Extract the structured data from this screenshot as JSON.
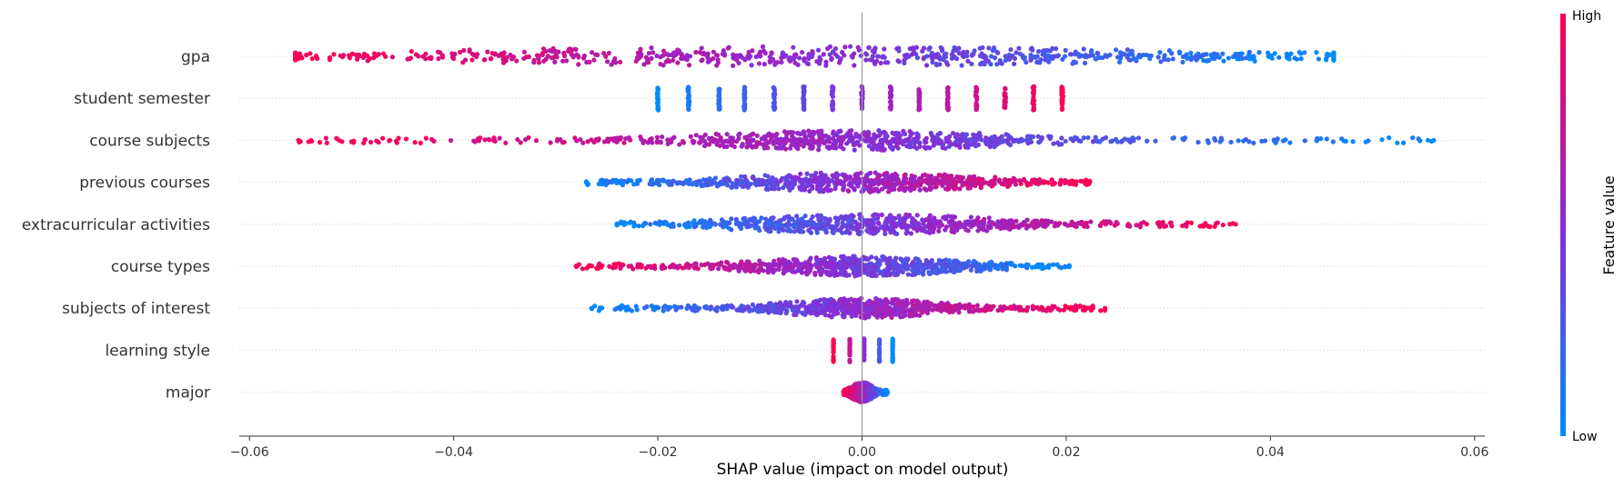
{
  "chart_data": {
    "type": "scatter",
    "subtype": "shap-beeswarm",
    "xlabel": "SHAP value (impact on model output)",
    "xlim": [
      -0.061,
      0.061
    ],
    "xticks": [
      {
        "value": -0.06,
        "label": "−0.06"
      },
      {
        "value": -0.04,
        "label": "−0.04"
      },
      {
        "value": -0.02,
        "label": "−0.02"
      },
      {
        "value": 0.0,
        "label": "0.00"
      },
      {
        "value": 0.02,
        "label": "0.02"
      },
      {
        "value": 0.04,
        "label": "0.04"
      },
      {
        "value": 0.06,
        "label": "0.06"
      }
    ],
    "zero_line": 0.0,
    "features": [
      {
        "name": "gpa",
        "shap_min": -0.0555,
        "shap_max": 0.0462,
        "low_side": "positive",
        "dense_at": -0.0043,
        "spread": 0.03
      },
      {
        "name": "student semester",
        "shap_min": -0.02,
        "shap_max": 0.02,
        "low_side": "negative",
        "discrete": [
          -0.02,
          -0.017,
          -0.014,
          -0.0115,
          -0.0086,
          -0.0057,
          -0.0029,
          0.0,
          0.0028,
          0.0056,
          0.0084,
          0.0112,
          0.014,
          0.0168,
          0.0196
        ]
      },
      {
        "name": "course subjects",
        "shap_min": -0.0552,
        "shap_max": 0.056,
        "low_side": "positive",
        "dense_at": 0.0,
        "spread": 0.012
      },
      {
        "name": "previous courses",
        "shap_min": -0.027,
        "shap_max": 0.0223,
        "low_side": "negative",
        "dense_at": 0.0,
        "spread": 0.009
      },
      {
        "name": "extracurricular activities",
        "shap_min": -0.024,
        "shap_max": 0.0366,
        "low_side": "negative",
        "dense_at": 0.001,
        "spread": 0.01
      },
      {
        "name": "course types",
        "shap_min": -0.028,
        "shap_max": 0.0203,
        "low_side": "positive",
        "dense_at": 0.0,
        "spread": 0.008
      },
      {
        "name": "subjects of interest",
        "shap_min": -0.0265,
        "shap_max": 0.0238,
        "low_side": "negative",
        "dense_at": 0.0,
        "spread": 0.006
      },
      {
        "name": "learning style",
        "shap_min": -0.0028,
        "shap_max": 0.003,
        "low_side": "positive",
        "discrete": [
          -0.0028,
          -0.0012,
          0.0002,
          0.0017,
          0.003
        ]
      },
      {
        "name": "major",
        "shap_min": -0.0018,
        "shap_max": 0.0025,
        "low_side": "positive",
        "dense_at": 0.0,
        "spread": 0.0008
      }
    ],
    "colorbar": {
      "title": "Feature value",
      "high_label": "High",
      "low_label": "Low",
      "high_color": "#ff0051",
      "low_color": "#008bfb"
    },
    "grid": false,
    "row_guides": "dotted"
  }
}
